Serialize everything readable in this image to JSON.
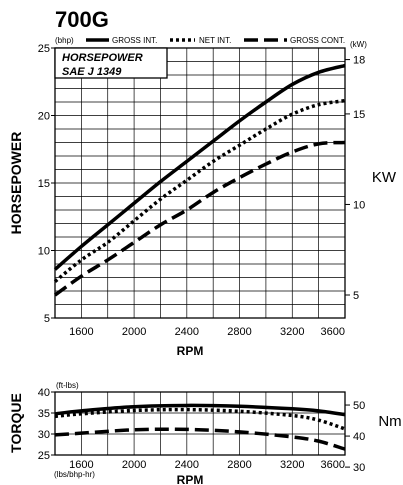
{
  "model": "700G",
  "legend": {
    "hp_unit": "(bhp)",
    "kw_unit": "(kW)",
    "items": [
      {
        "label": "GROSS INT.",
        "style": "solid"
      },
      {
        "label": "NET INT.",
        "style": "dotted"
      },
      {
        "label": "GROSS CONT.",
        "style": "dashed"
      }
    ]
  },
  "chart_data": [
    {
      "type": "line",
      "title": "HORSEPOWER",
      "subtitle": "SAE J 1349",
      "xlabel": "RPM",
      "ylabel": "HORSEPOWER",
      "y2label": "KW",
      "xlim": [
        1400,
        3600
      ],
      "ylim": [
        5,
        25
      ],
      "y2lim": [
        3.73,
        18.64
      ],
      "x_ticks": [
        1600,
        2000,
        2400,
        2800,
        3200,
        3600
      ],
      "y_ticks": [
        5,
        10,
        15,
        20,
        25
      ],
      "y2_ticks": [
        5,
        10,
        15,
        18
      ],
      "grid": true,
      "x": [
        1400,
        1600,
        1800,
        2000,
        2200,
        2400,
        2600,
        2800,
        3000,
        3200,
        3400,
        3600
      ],
      "series": [
        {
          "name": "GROSS INT.",
          "style": "solid",
          "values": [
            8.6,
            10.3,
            11.9,
            13.5,
            15.1,
            16.6,
            18.1,
            19.6,
            21.0,
            22.3,
            23.2,
            23.7
          ]
        },
        {
          "name": "NET INT.",
          "style": "dotted",
          "values": [
            7.7,
            9.3,
            10.6,
            12.2,
            13.8,
            15.2,
            16.6,
            17.8,
            19.0,
            20.1,
            20.8,
            21.1
          ]
        },
        {
          "name": "GROSS CONT.",
          "style": "dashed",
          "values": [
            6.7,
            8.1,
            9.3,
            10.6,
            11.9,
            13.0,
            14.3,
            15.4,
            16.4,
            17.3,
            17.9,
            18.0
          ]
        }
      ]
    },
    {
      "type": "line",
      "title": "TORQUE",
      "xlabel": "RPM",
      "ylabel": "TORQUE",
      "y_unit_top": "(ft-lbs)",
      "y_unit_bottom": "(lbs/bhp-hr)",
      "y2label": "Nm",
      "xlim": [
        1400,
        3600
      ],
      "ylim": [
        25,
        40
      ],
      "y2lim": [
        33.9,
        54.2
      ],
      "x_ticks": [
        1600,
        2000,
        2400,
        2800,
        3200,
        3600
      ],
      "y_ticks": [
        25,
        30,
        35,
        40
      ],
      "y2_ticks": [
        30,
        40,
        50
      ],
      "grid": true,
      "x": [
        1400,
        1600,
        2000,
        2400,
        2800,
        3200,
        3400,
        3600
      ],
      "series": [
        {
          "name": "GROSS INT.",
          "style": "solid",
          "values": [
            34.8,
            35.5,
            36.5,
            36.8,
            36.6,
            36.0,
            35.5,
            34.6
          ]
        },
        {
          "name": "NET INT.",
          "style": "dotted",
          "values": [
            34.2,
            34.8,
            35.6,
            35.8,
            35.4,
            34.4,
            33.3,
            31.2
          ]
        },
        {
          "name": "GROSS CONT.",
          "style": "dashed",
          "values": [
            29.8,
            30.2,
            31.0,
            31.1,
            30.5,
            29.3,
            28.3,
            26.4
          ]
        }
      ]
    }
  ]
}
